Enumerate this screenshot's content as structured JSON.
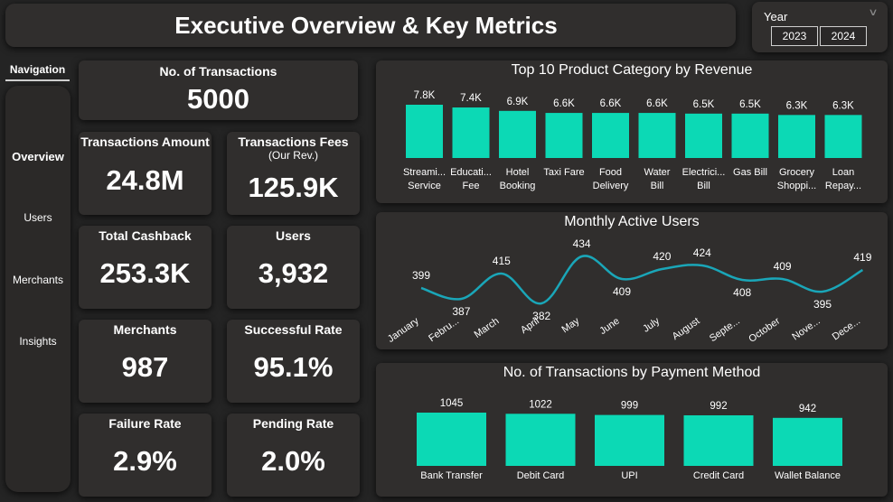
{
  "header": {
    "title": "Executive Overview & Key Metrics"
  },
  "year_filter": {
    "label": "Year",
    "options": [
      "2023",
      "2024"
    ]
  },
  "navigation": {
    "header": "Navigation",
    "items": [
      "Overview",
      "Users",
      "Merchants",
      "Insights"
    ],
    "active": "Overview"
  },
  "kpis": {
    "transactions": {
      "label": "No. of Transactions",
      "value": "5000"
    },
    "amount": {
      "label": "Transactions Amount",
      "value": "24.8M"
    },
    "fees": {
      "label": "Transactions Fees",
      "sublabel": "(Our Rev.)",
      "value": "125.9K"
    },
    "cashback": {
      "label": "Total Cashback",
      "value": "253.3K"
    },
    "users": {
      "label": "Users",
      "value": "3,932"
    },
    "merchants": {
      "label": "Merchants",
      "value": "987"
    },
    "success": {
      "label": "Successful Rate",
      "value": "95.1%"
    },
    "failure": {
      "label": "Failure Rate",
      "value": "2.9%"
    },
    "pending": {
      "label": "Pending Rate",
      "value": "2.0%"
    }
  },
  "colors": {
    "accent": "#0cd9b5",
    "line": "#1aa6b8",
    "background": "#242424",
    "card": "#302e2d"
  },
  "chart_data": [
    {
      "type": "bar",
      "title": "Top 10 Product Category by Revenue",
      "categories": [
        [
          "Streami...",
          "Service"
        ],
        [
          "Educati...",
          "Fee"
        ],
        [
          "Hotel",
          "Booking"
        ],
        [
          "Taxi Fare"
        ],
        [
          "Food",
          "Delivery"
        ],
        [
          "Water",
          "Bill"
        ],
        [
          "Electrici...",
          "Bill"
        ],
        [
          "Gas Bill"
        ],
        [
          "Grocery",
          "Shoppi..."
        ],
        [
          "Loan",
          "Repay..."
        ]
      ],
      "values": [
        7800,
        7400,
        6900,
        6600,
        6600,
        6600,
        6500,
        6500,
        6300,
        6300
      ],
      "data_labels": [
        "7.8K",
        "7.4K",
        "6.9K",
        "6.6K",
        "6.6K",
        "6.6K",
        "6.5K",
        "6.5K",
        "6.3K",
        "6.3K"
      ],
      "grid": false
    },
    {
      "type": "line",
      "title": "Monthly Active Users",
      "categories": [
        "January",
        "Febru...",
        "March",
        "April",
        "May",
        "June",
        "July",
        "August",
        "Septe...",
        "October",
        "Nove...",
        "Dece..."
      ],
      "values": [
        399,
        387,
        415,
        382,
        434,
        409,
        420,
        424,
        408,
        409,
        395,
        419
      ],
      "grid": false
    },
    {
      "type": "bar",
      "title": "No. of Transactions by Payment Method",
      "categories": [
        "Bank Transfer",
        "Debit Card",
        "UPI",
        "Credit Card",
        "Wallet Balance"
      ],
      "values": [
        1045,
        1022,
        999,
        992,
        942
      ],
      "grid": false
    }
  ]
}
